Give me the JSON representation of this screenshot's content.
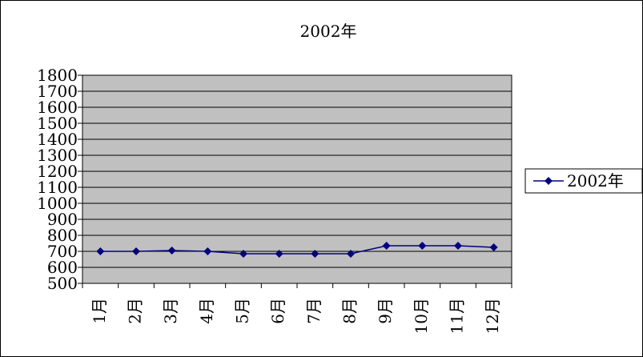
{
  "chart_data": {
    "type": "line",
    "title": "2002年",
    "xlabel": "",
    "ylabel": "",
    "categories": [
      "1月",
      "2月",
      "3月",
      "4月",
      "5月",
      "6月",
      "7月",
      "8月",
      "9月",
      "10月",
      "11月",
      "12月"
    ],
    "series": [
      {
        "name": "2002年",
        "values": [
          700,
          700,
          705,
          700,
          685,
          685,
          685,
          685,
          735,
          735,
          735,
          725
        ],
        "color": "#000080",
        "marker": "diamond"
      }
    ],
    "ylim": [
      500,
      1800
    ],
    "yticks": [
      500,
      600,
      700,
      800,
      900,
      1000,
      1100,
      1200,
      1300,
      1400,
      1500,
      1600,
      1700,
      1800
    ],
    "grid": true,
    "legend": "right",
    "plot_background": "#c0c0c0"
  }
}
